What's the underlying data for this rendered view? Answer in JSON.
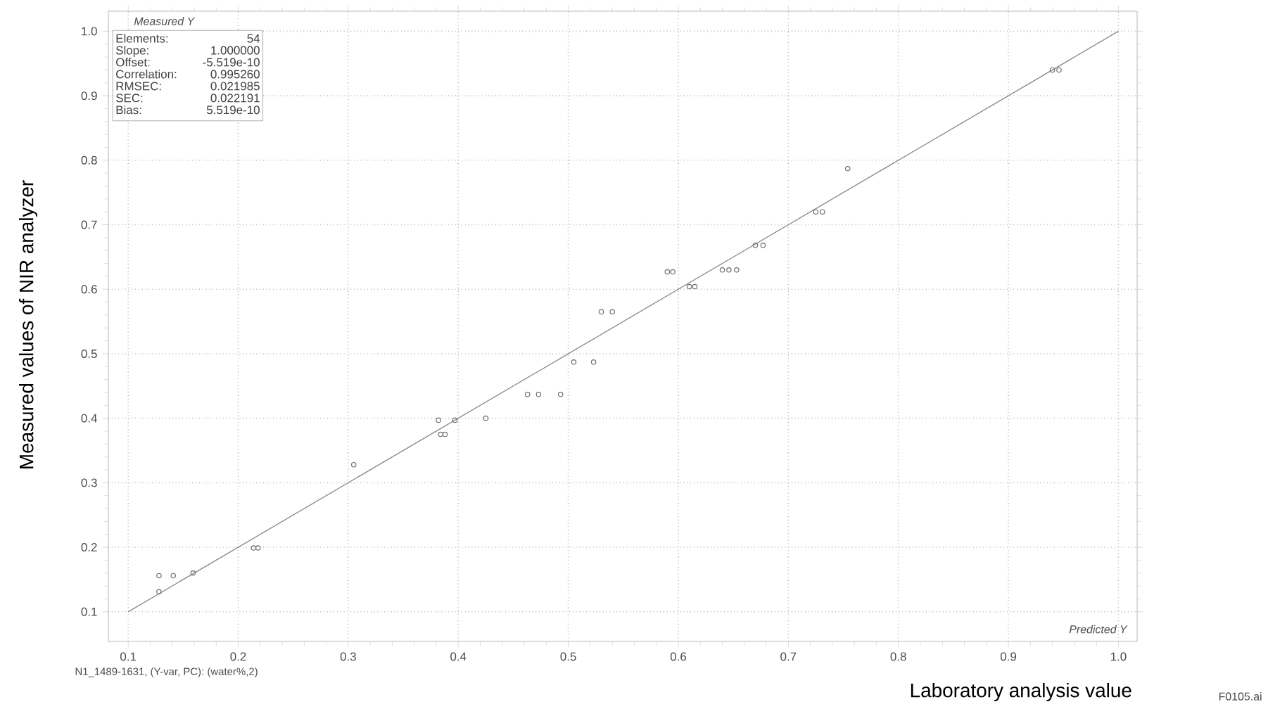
{
  "chart_data": {
    "type": "scatter",
    "xlabel": "Laboratory analysis value",
    "ylabel": "Measured values of NIR analyzer",
    "annotations": [
      "Elements:",
      "54",
      "Slope:",
      "1.000000",
      "Offset:",
      "-5.519e-10",
      "Correlation:",
      "0.995260",
      "RMSEC:",
      "0.021985",
      "SEC:",
      "0.022191",
      "Bias:",
      "5.519e-10",
      "Measured Y",
      "Predicted Y",
      "N1_1489-1631, (Y-var, PC): (water%,2)",
      "F0105.ai"
    ],
    "series": [
      {
        "color": "#6e6e6e",
        "marker": "circle",
        "x": [
          0.128,
          0.141,
          0.159,
          0.128,
          0.214,
          0.218,
          0.305,
          0.384,
          0.388,
          0.382,
          0.397,
          0.425,
          0.463,
          0.473,
          0.493,
          0.505,
          0.523,
          0.53,
          0.54,
          0.59,
          0.595,
          0.61,
          0.615,
          0.64,
          0.646,
          0.653,
          0.67,
          0.677,
          0.725,
          0.731,
          0.754,
          0.94,
          0.946
        ],
        "values": [
          0.156,
          0.156,
          0.16,
          0.131,
          0.199,
          0.199,
          0.328,
          0.375,
          0.375,
          0.397,
          0.397,
          0.4,
          0.437,
          0.437,
          0.437,
          0.487,
          0.487,
          0.565,
          0.565,
          0.627,
          0.627,
          0.604,
          0.604,
          0.63,
          0.63,
          0.63,
          0.668,
          0.668,
          0.72,
          0.72,
          0.787,
          0.94,
          0.94
        ]
      },
      {
        "type": "line",
        "color": "#8c8c8c",
        "x": [
          0.1,
          1.0
        ],
        "values": [
          0.1,
          1.0
        ]
      }
    ],
    "xlim": [
      0.082,
      1.017
    ],
    "ylim": [
      0.054,
      1.031
    ],
    "xticks": [
      0.1,
      0.2,
      0.3,
      0.4,
      0.5,
      0.6,
      0.7,
      0.8,
      0.9,
      {
        "value": 1,
        "label": "1.0"
      }
    ],
    "yticks": [
      0.1,
      0.2,
      0.3,
      0.4,
      0.5,
      0.6,
      0.7,
      0.8,
      0.9,
      {
        "value": 1,
        "label": "1.0"
      }
    ],
    "grid": true
  }
}
